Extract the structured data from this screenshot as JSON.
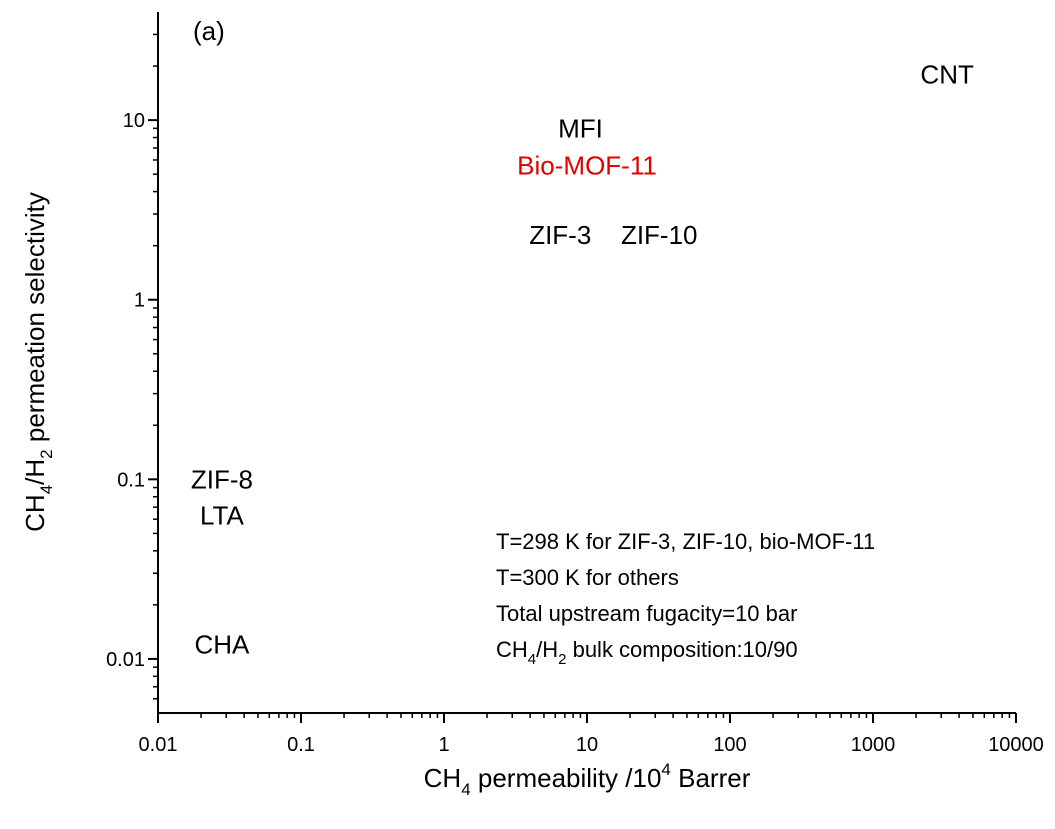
{
  "chart_data": {
    "type": "scatter",
    "panel_label": "(a)",
    "xlabel": {
      "main": "CH",
      "sub": "4",
      "rest": " permeability /10",
      "sup": "4",
      "tail": " Barrer"
    },
    "ylabel": {
      "p1": "CH",
      "s1": "4",
      "p2": "/H",
      "s2": "2",
      "p3": " permeation selectivity"
    },
    "x_scale": "log",
    "y_scale": "log",
    "xlim": [
      0.01,
      10000
    ],
    "ylim": [
      0.005,
      40
    ],
    "xticks": [
      "0.01",
      "0.1",
      "1",
      "10",
      "100",
      "1000",
      "10000"
    ],
    "yticks": [
      "0.01",
      "0.1",
      "1",
      "10"
    ],
    "grid": false,
    "points": [
      {
        "label": "CNT",
        "x": 3300,
        "y": 18,
        "color": "#000000"
      },
      {
        "label": "MFI",
        "x": 9,
        "y": 9,
        "color": "#000000"
      },
      {
        "label": "Bio-MOF-11",
        "x": 10,
        "y": 5.6,
        "color": "#e00000"
      },
      {
        "label": "ZIF-3",
        "x": 6.5,
        "y": 2.3,
        "color": "#000000"
      },
      {
        "label": "ZIF-10",
        "x": 32,
        "y": 2.3,
        "color": "#000000"
      },
      {
        "label": "ZIF-8",
        "x": 0.028,
        "y": 0.1,
        "color": "#000000"
      },
      {
        "label": "LTA",
        "x": 0.028,
        "y": 0.063,
        "color": "#000000"
      },
      {
        "label": "CHA",
        "x": 0.028,
        "y": 0.012,
        "color": "#000000"
      }
    ],
    "annotations": [
      {
        "text": "T=298 K for ZIF-3, ZIF-10, bio-MOF-11"
      },
      {
        "text": "T=300 K for others"
      },
      {
        "text": "Total upstream fugacity=10 bar"
      },
      {
        "p1": "CH",
        "s1": "4",
        "p2": "/H",
        "s2": "2",
        "p3": " bulk composition:10/90"
      }
    ]
  }
}
